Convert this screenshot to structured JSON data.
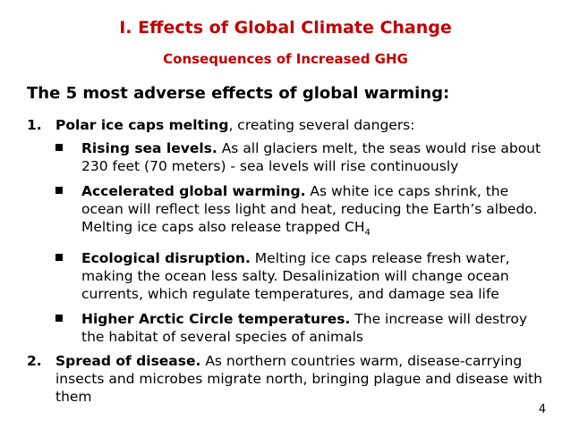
{
  "title": "I.  Effects of Global Climate Change",
  "subtitle": "Consequences of Increased GHG",
  "heading": "The 5 most adverse effects of global warming:",
  "item1": {
    "number": "1.",
    "lead": "Polar ice caps melting",
    "rest": ", creating several dangers:"
  },
  "bullets": [
    {
      "lead": "Rising sea levels.",
      "text": "  As all glaciers melt, the seas would rise about 230 feet (70 meters) - sea levels will rise continuously"
    },
    {
      "lead": "Accelerated global warming.",
      "text": "  As white ice caps shrink, the ocean will reflect less light and heat, reducing the Earth’s albedo.  Melting ice caps also release trapped CH",
      "subscript": "4"
    },
    {
      "lead": "Ecological disruption.",
      "text": "  Melting ice caps release fresh water, making the ocean less salty.  Desalinization will change ocean currents, which regulate temperatures, and damage sea life"
    },
    {
      "lead": "Higher Arctic Circle temperatures.",
      "text": "   The increase will destroy the habitat of several species of animals"
    }
  ],
  "item2": {
    "number": "2.",
    "lead": "Spread of disease.",
    "rest": "  As northern countries warm, disease-carrying insects and microbes migrate north, bringing plague and disease with them"
  },
  "page_number": "4",
  "colors": {
    "title": "#c00000",
    "text": "#000000",
    "background": "#ffffff"
  },
  "icons": {
    "bullet": "square-bullet-icon"
  }
}
